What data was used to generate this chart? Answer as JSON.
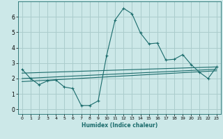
{
  "xlabel": "Humidex (Indice chaleur)",
  "ylabel": "",
  "bg_color": "#cce8e8",
  "grid_color": "#aacccc",
  "line_color": "#1a6b6b",
  "xlim": [
    -0.5,
    23.5
  ],
  "ylim": [
    -0.3,
    7.0
  ],
  "yticks": [
    0,
    1,
    2,
    3,
    4,
    5,
    6
  ],
  "xticks": [
    0,
    1,
    2,
    3,
    4,
    5,
    6,
    7,
    8,
    9,
    10,
    11,
    12,
    13,
    14,
    15,
    16,
    17,
    18,
    19,
    20,
    21,
    22,
    23
  ],
  "series1_x": [
    0,
    1,
    2,
    3,
    4,
    5,
    6,
    7,
    8,
    9,
    10,
    11,
    12,
    13,
    14,
    15,
    16,
    17,
    18,
    19,
    20,
    21,
    22,
    23
  ],
  "series1_y": [
    2.6,
    2.0,
    1.6,
    1.85,
    1.9,
    1.45,
    1.35,
    0.25,
    0.25,
    0.55,
    3.5,
    5.8,
    6.55,
    6.2,
    4.95,
    4.25,
    4.3,
    3.2,
    3.25,
    3.55,
    2.9,
    2.4,
    2.0,
    2.75
  ],
  "series2_x": [
    0,
    23
  ],
  "series2_y": [
    2.35,
    2.75
  ],
  "series3_x": [
    0,
    23
  ],
  "series3_y": [
    2.0,
    2.6
  ],
  "series4_x": [
    0,
    23
  ],
  "series4_y": [
    1.8,
    2.5
  ]
}
